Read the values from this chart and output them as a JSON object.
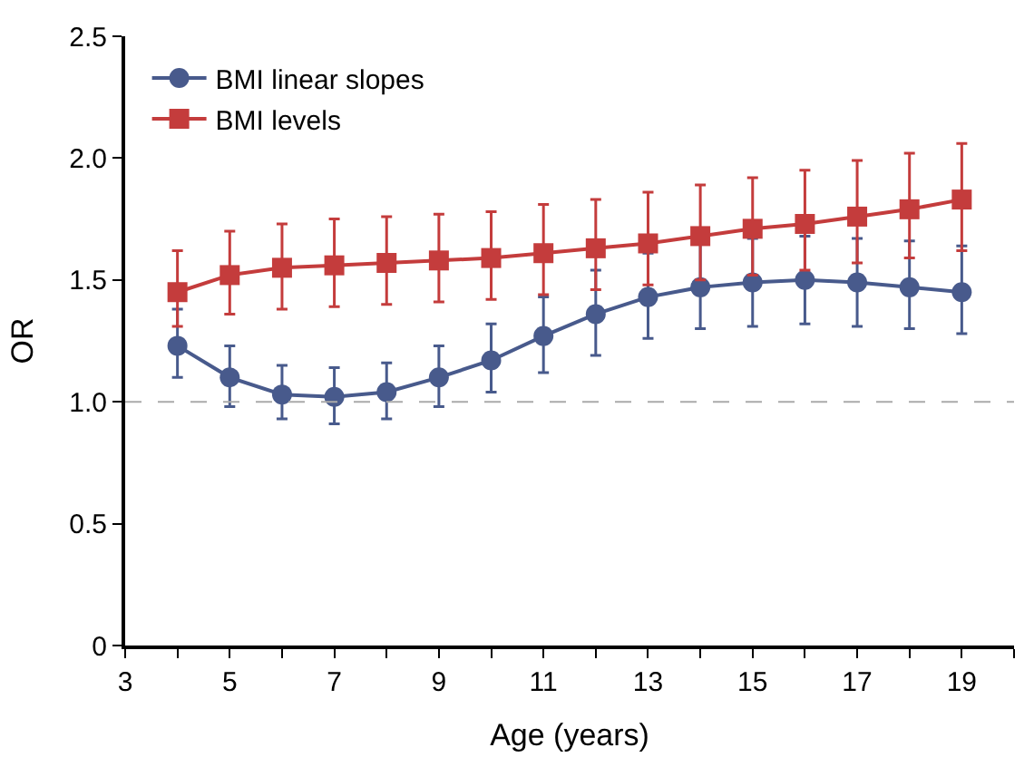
{
  "chart_data": {
    "type": "line",
    "xlabel": "Age (years)",
    "ylabel": "OR",
    "x": [
      4,
      5,
      6,
      7,
      8,
      9,
      10,
      11,
      12,
      13,
      14,
      15,
      16,
      17,
      18,
      19
    ],
    "series": [
      {
        "name": "BMI linear slopes",
        "color": "#485a8c",
        "marker": "circle",
        "values": [
          1.23,
          1.1,
          1.03,
          1.02,
          1.04,
          1.1,
          1.17,
          1.27,
          1.36,
          1.43,
          1.47,
          1.49,
          1.5,
          1.49,
          1.47,
          1.45
        ],
        "errors": [
          [
            1.1,
            1.38
          ],
          [
            0.98,
            1.23
          ],
          [
            0.93,
            1.15
          ],
          [
            0.91,
            1.14
          ],
          [
            0.93,
            1.16
          ],
          [
            0.98,
            1.23
          ],
          [
            1.04,
            1.32
          ],
          [
            1.12,
            1.43
          ],
          [
            1.19,
            1.54
          ],
          [
            1.26,
            1.61
          ],
          [
            1.3,
            1.66
          ],
          [
            1.31,
            1.67
          ],
          [
            1.32,
            1.68
          ],
          [
            1.31,
            1.67
          ],
          [
            1.3,
            1.66
          ],
          [
            1.28,
            1.64
          ]
        ]
      },
      {
        "name": "BMI levels",
        "color": "#c43c3c",
        "marker": "square",
        "values": [
          1.45,
          1.52,
          1.55,
          1.56,
          1.57,
          1.58,
          1.59,
          1.61,
          1.63,
          1.65,
          1.68,
          1.71,
          1.73,
          1.76,
          1.79,
          1.83
        ],
        "errors": [
          [
            1.31,
            1.62
          ],
          [
            1.36,
            1.7
          ],
          [
            1.38,
            1.73
          ],
          [
            1.39,
            1.75
          ],
          [
            1.4,
            1.76
          ],
          [
            1.41,
            1.77
          ],
          [
            1.42,
            1.78
          ],
          [
            1.44,
            1.81
          ],
          [
            1.46,
            1.83
          ],
          [
            1.48,
            1.86
          ],
          [
            1.5,
            1.89
          ],
          [
            1.52,
            1.92
          ],
          [
            1.54,
            1.95
          ],
          [
            1.57,
            1.99
          ],
          [
            1.59,
            2.02
          ],
          [
            1.62,
            2.06
          ]
        ]
      }
    ],
    "xlim": [
      3,
      20
    ],
    "xticks": [
      3,
      {
        "value": 4,
        "label": null
      },
      5,
      {
        "value": 6,
        "label": null
      },
      7,
      {
        "value": 8,
        "label": null
      },
      9,
      {
        "value": 10,
        "label": null
      },
      11,
      {
        "value": 12,
        "label": null
      },
      13,
      {
        "value": 14,
        "label": null
      },
      15,
      {
        "value": 16,
        "label": null
      },
      17,
      {
        "value": 18,
        "label": null
      },
      19,
      {
        "value": 20,
        "label": null
      }
    ],
    "ylim": [
      0,
      2.5
    ],
    "yticks": [
      0,
      0.5,
      {
        "value": 1.0,
        "label": "1.0"
      },
      1.5,
      {
        "value": 2.0,
        "label": "2.0"
      },
      2.5
    ],
    "ref_lines": [
      {
        "axis": "y",
        "value": 1.0,
        "color": "#aaaaaa",
        "line_style": "dashed"
      }
    ],
    "legend": "top left",
    "line_style": "solid"
  }
}
